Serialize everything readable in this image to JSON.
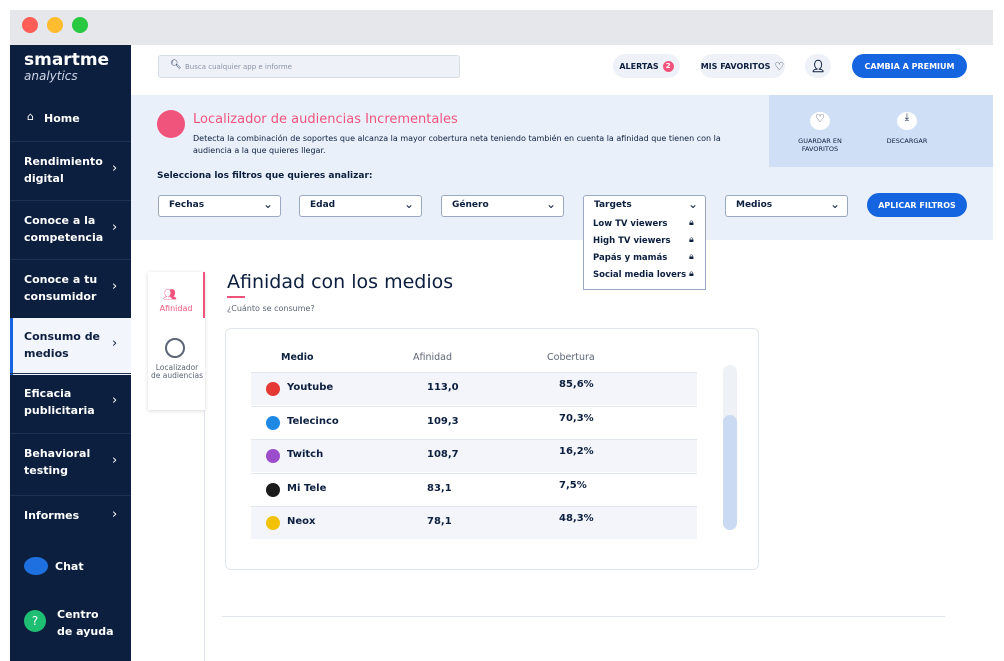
{
  "sidebar": {
    "logo": "smartme",
    "logo_sub": "analytics",
    "items": [
      "Home",
      "Rendimiento digital",
      "Conoce a la competencia",
      "Conoce a tu consumidor",
      "Consumo de medios",
      "Eficacia publicitaria",
      "Behavioral testing",
      "Informes"
    ],
    "active": 4,
    "chat": "Chat",
    "help_icon": "?",
    "help": "Centro de ayuda"
  },
  "header": {
    "search_placeholder": "Busca cualquier app e informe",
    "alerts": "ALERTAS",
    "alerts_badge": "2",
    "favorites": "MIS FAVORITOS",
    "premium": "CAMBIA A PREMIUM"
  },
  "banner": {
    "title": "Localizador de audiencias Incrementales",
    "description": "Detecta la combinación de soportes que alcanza la mayor cobertura neta teniendo también en cuenta la afinidad que tienen con la audiencia a la que quieres llegar.",
    "save": "GUARDAR EN FAVORITOS",
    "download": "DESCARGAR",
    "filters_label": "Selecciona los filtros que quieres analizar:",
    "filters": [
      "Fechas",
      "Edad",
      "Género",
      "Targets",
      "Medios"
    ],
    "apply": "APLICAR FILTROS",
    "targets_options": [
      "Low TV viewers",
      "High TV viewers",
      "Papás y mamás",
      "Social media lovers"
    ]
  },
  "tabs": [
    "Afinidad",
    "Localizador de audiencias"
  ],
  "section": {
    "title": "Afinidad con los medios",
    "subtitle": "¿Cuánto se consume?"
  },
  "table": {
    "columns": [
      "Medio",
      "Afinidad",
      "Cobertura"
    ],
    "rows": [
      [
        "Youtube",
        "113,0",
        "85,6%"
      ],
      [
        "Telecinco",
        "109,3",
        "70,3%"
      ],
      [
        "Twitch",
        "108,7",
        "16,2%"
      ],
      [
        "Mi Tele",
        "83,1",
        "7,5%"
      ],
      [
        "Neox",
        "78,1",
        "48,3%"
      ]
    ],
    "icon_colors": [
      "#e53935",
      "#1e88e5",
      "#9c4dcc",
      "#1b1b1b",
      "#f2c200"
    ]
  }
}
